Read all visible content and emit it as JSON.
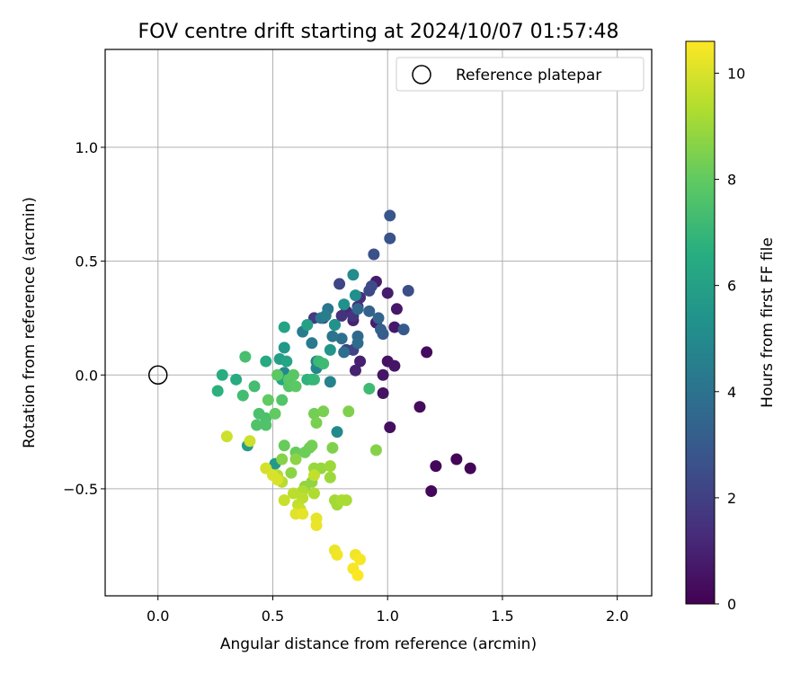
{
  "chart_data": {
    "type": "scatter",
    "title": "FOV centre drift starting at 2024/10/07 01:57:48",
    "xlabel": "Angular distance from reference (arcmin)",
    "ylabel": "Rotation from reference (arcmin)",
    "xlim": [
      -0.23,
      2.15
    ],
    "ylim": [
      -0.97,
      1.43
    ],
    "xticks": [
      "0.0",
      "0.5",
      "1.0",
      "1.5",
      "2.0"
    ],
    "xtick_values": [
      0.0,
      0.5,
      1.0,
      1.5,
      2.0
    ],
    "yticks": [
      "−0.5",
      "0.0",
      "0.5",
      "1.0"
    ],
    "ytick_values": [
      -0.5,
      0.0,
      0.5,
      1.0
    ],
    "grid": true,
    "legend": {
      "label": "Reference platepar",
      "placement": "top-right"
    },
    "reference_point": {
      "x": 0.0,
      "y": 0.0
    },
    "colorbar": {
      "label": "Hours from first FF file",
      "colormap": "viridis",
      "range": [
        0,
        10.6
      ],
      "ticks": [
        "0",
        "2",
        "4",
        "6",
        "8",
        "10"
      ],
      "tick_values": [
        0,
        2,
        4,
        6,
        8,
        10
      ]
    },
    "points": [
      [
        1.36,
        -0.41,
        0.1
      ],
      [
        1.3,
        -0.37,
        0.1
      ],
      [
        1.21,
        -0.4,
        0.2
      ],
      [
        1.19,
        -0.51,
        0.2
      ],
      [
        1.14,
        -0.14,
        0.3
      ],
      [
        1.17,
        0.1,
        0.3
      ],
      [
        1.01,
        -0.23,
        0.4
      ],
      [
        0.98,
        -0.08,
        0.5
      ],
      [
        1.0,
        0.06,
        0.5
      ],
      [
        1.03,
        0.04,
        0.6
      ],
      [
        0.98,
        0.0,
        0.6
      ],
      [
        1.03,
        0.21,
        0.7
      ],
      [
        1.04,
        0.29,
        0.7
      ],
      [
        1.0,
        0.36,
        0.8
      ],
      [
        0.95,
        0.41,
        0.8
      ],
      [
        0.95,
        0.23,
        0.9
      ],
      [
        0.88,
        0.06,
        0.9
      ],
      [
        0.86,
        0.02,
        1.0
      ],
      [
        0.85,
        0.24,
        1.0
      ],
      [
        0.82,
        0.28,
        1.2
      ],
      [
        0.87,
        0.3,
        1.3
      ],
      [
        0.88,
        0.34,
        1.4
      ],
      [
        0.8,
        0.26,
        1.5
      ],
      [
        0.85,
        0.26,
        1.6
      ],
      [
        0.72,
        0.25,
        1.7
      ],
      [
        0.68,
        0.25,
        1.8
      ],
      [
        0.77,
        0.22,
        1.9
      ],
      [
        0.82,
        0.11,
        2.0
      ],
      [
        0.85,
        0.11,
        2.1
      ],
      [
        0.79,
        0.4,
        2.2
      ],
      [
        0.92,
        0.37,
        2.3
      ],
      [
        0.93,
        0.39,
        2.4
      ],
      [
        1.09,
        0.37,
        2.5
      ],
      [
        0.94,
        0.53,
        2.6
      ],
      [
        1.01,
        0.6,
        2.7
      ],
      [
        1.01,
        0.7,
        2.8
      ],
      [
        1.07,
        0.2,
        3.0
      ],
      [
        0.98,
        0.18,
        3.1
      ],
      [
        0.97,
        0.2,
        3.2
      ],
      [
        0.92,
        0.28,
        3.3
      ],
      [
        0.96,
        0.25,
        3.4
      ],
      [
        0.87,
        0.29,
        3.5
      ],
      [
        0.87,
        0.17,
        3.6
      ],
      [
        0.87,
        0.14,
        3.7
      ],
      [
        0.81,
        0.1,
        3.8
      ],
      [
        0.8,
        0.16,
        3.9
      ],
      [
        0.76,
        0.17,
        4.0
      ],
      [
        0.74,
        0.29,
        4.1
      ],
      [
        0.71,
        0.25,
        4.2
      ],
      [
        0.67,
        0.14,
        4.3
      ],
      [
        0.63,
        0.19,
        4.4
      ],
      [
        0.73,
        0.26,
        4.5
      ],
      [
        0.69,
        0.06,
        4.6
      ],
      [
        0.75,
        -0.03,
        4.7
      ],
      [
        0.69,
        0.03,
        4.8
      ],
      [
        0.55,
        0.01,
        4.9
      ],
      [
        0.78,
        -0.25,
        5.0
      ],
      [
        0.85,
        0.44,
        5.1
      ],
      [
        0.86,
        0.35,
        5.2
      ],
      [
        0.81,
        0.31,
        5.3
      ],
      [
        0.77,
        0.22,
        5.4
      ],
      [
        0.75,
        0.11,
        5.5
      ],
      [
        0.55,
        0.12,
        5.6
      ],
      [
        0.51,
        -0.39,
        5.7
      ],
      [
        0.39,
        -0.31,
        5.8
      ],
      [
        0.53,
        0.07,
        5.9
      ],
      [
        0.65,
        0.22,
        6.0
      ],
      [
        0.55,
        0.21,
        6.1
      ],
      [
        0.56,
        0.06,
        6.2
      ],
      [
        0.54,
        -0.02,
        6.3
      ],
      [
        0.47,
        0.06,
        6.4
      ],
      [
        0.34,
        -0.02,
        6.5
      ],
      [
        0.28,
        0.0,
        6.6
      ],
      [
        0.26,
        -0.07,
        6.7
      ],
      [
        0.65,
        -0.02,
        6.8
      ],
      [
        0.67,
        -0.02,
        6.9
      ],
      [
        0.68,
        -0.02,
        7.0
      ],
      [
        0.7,
        0.06,
        7.1
      ],
      [
        0.72,
        0.05,
        7.2
      ],
      [
        0.92,
        -0.06,
        7.2
      ],
      [
        0.42,
        -0.05,
        7.3
      ],
      [
        0.37,
        -0.09,
        7.3
      ],
      [
        0.38,
        0.08,
        7.4
      ],
      [
        0.44,
        -0.17,
        7.5
      ],
      [
        0.47,
        -0.19,
        7.5
      ],
      [
        0.43,
        -0.22,
        7.6
      ],
      [
        0.47,
        -0.22,
        7.6
      ],
      [
        0.54,
        -0.11,
        7.7
      ],
      [
        0.57,
        -0.05,
        7.7
      ],
      [
        0.59,
        0.0,
        7.8
      ],
      [
        0.57,
        -0.02,
        7.8
      ],
      [
        0.6,
        -0.05,
        7.9
      ],
      [
        0.52,
        0.0,
        7.9
      ],
      [
        0.48,
        -0.11,
        8.0
      ],
      [
        0.51,
        -0.17,
        8.0
      ],
      [
        0.55,
        -0.31,
        8.1
      ],
      [
        0.6,
        -0.34,
        8.1
      ],
      [
        0.64,
        -0.34,
        8.2
      ],
      [
        0.66,
        -0.32,
        8.2
      ],
      [
        0.67,
        -0.31,
        8.3
      ],
      [
        0.68,
        -0.17,
        8.3
      ],
      [
        0.69,
        -0.21,
        8.4
      ],
      [
        0.72,
        -0.16,
        8.4
      ],
      [
        0.83,
        -0.16,
        8.5
      ],
      [
        0.76,
        -0.32,
        8.5
      ],
      [
        0.95,
        -0.33,
        8.6
      ],
      [
        0.54,
        -0.37,
        8.6
      ],
      [
        0.6,
        -0.37,
        8.7
      ],
      [
        0.58,
        -0.43,
        8.7
      ],
      [
        0.64,
        -0.49,
        8.8
      ],
      [
        0.67,
        -0.47,
        8.8
      ],
      [
        0.71,
        -0.41,
        8.9
      ],
      [
        0.68,
        -0.41,
        8.9
      ],
      [
        0.75,
        -0.4,
        9.0
      ],
      [
        0.75,
        -0.45,
        9.0
      ],
      [
        0.77,
        -0.55,
        9.1
      ],
      [
        0.78,
        -0.57,
        9.1
      ],
      [
        0.8,
        -0.55,
        9.2
      ],
      [
        0.82,
        -0.55,
        9.2
      ],
      [
        0.63,
        -0.51,
        9.3
      ],
      [
        0.68,
        -0.52,
        9.3
      ],
      [
        0.52,
        -0.44,
        9.4
      ],
      [
        0.54,
        -0.47,
        9.4
      ],
      [
        0.59,
        -0.52,
        9.5
      ],
      [
        0.63,
        -0.54,
        9.5
      ],
      [
        0.68,
        -0.44,
        9.6
      ],
      [
        0.61,
        -0.57,
        9.6
      ],
      [
        0.62,
        -0.59,
        9.7
      ],
      [
        0.55,
        -0.55,
        9.7
      ],
      [
        0.3,
        -0.27,
        9.8
      ],
      [
        0.4,
        -0.29,
        9.8
      ],
      [
        0.47,
        -0.41,
        9.9
      ],
      [
        0.5,
        -0.44,
        10.0
      ],
      [
        0.52,
        -0.46,
        10.0
      ],
      [
        0.6,
        -0.61,
        10.1
      ],
      [
        0.63,
        -0.61,
        10.2
      ],
      [
        0.69,
        -0.63,
        10.2
      ],
      [
        0.69,
        -0.66,
        10.3
      ],
      [
        0.77,
        -0.77,
        10.3
      ],
      [
        0.78,
        -0.79,
        10.4
      ],
      [
        0.86,
        -0.79,
        10.4
      ],
      [
        0.88,
        -0.81,
        10.5
      ],
      [
        0.85,
        -0.85,
        10.5
      ],
      [
        0.87,
        -0.88,
        10.6
      ]
    ]
  }
}
